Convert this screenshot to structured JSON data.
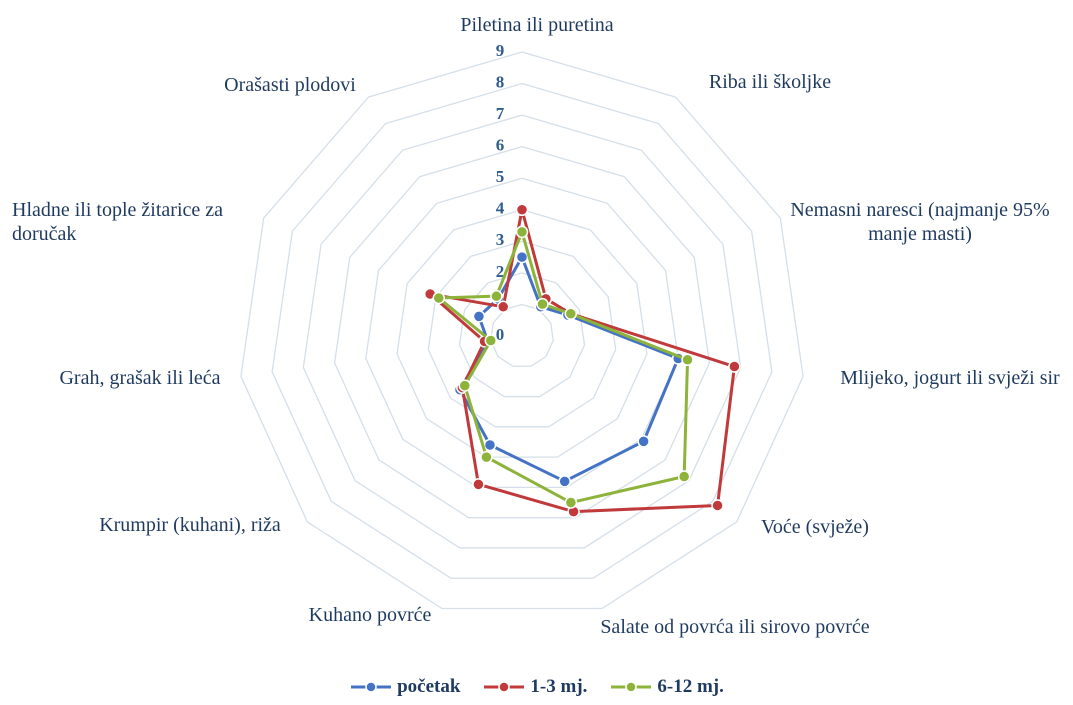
{
  "chart_data": {
    "type": "radar",
    "categories": [
      "Piletina ili puretina",
      "Riba ili školjke",
      "Nemasni naresci (najmanje 95% manje masti)",
      "Mlijeko, jogurt ili svježi sir",
      "Voće (svježe)",
      "Salate od povrća ili sirovo povrće",
      "Kuhano povrće",
      "Krumpir (kuhani), riža",
      "Grah, grašak ili leća",
      "Hladne ili tople žitarice za doručak",
      "Orašasti plodovi"
    ],
    "series": [
      {
        "name": "početak",
        "color": "#4472c4",
        "values": [
          2.5,
          1.1,
          1.6,
          5.0,
          5.1,
          4.8,
          3.6,
          2.6,
          1.1,
          1.5,
          1.4
        ]
      },
      {
        "name": "1-3 mj.",
        "color": "#c0393b",
        "values": [
          4.0,
          1.4,
          1.7,
          6.8,
          8.2,
          5.8,
          4.9,
          2.5,
          1.2,
          3.2,
          1.1
        ]
      },
      {
        "name": "6-12 mj.",
        "color": "#8db33a",
        "values": [
          3.3,
          1.2,
          1.7,
          5.3,
          6.8,
          5.5,
          4.0,
          2.4,
          1.0,
          2.9,
          1.5
        ]
      }
    ],
    "rlim": [
      0,
      9
    ],
    "rticks": [
      0,
      1,
      2,
      3,
      4,
      5,
      6,
      7,
      8,
      9
    ],
    "grid": true,
    "legend": "bottom"
  }
}
